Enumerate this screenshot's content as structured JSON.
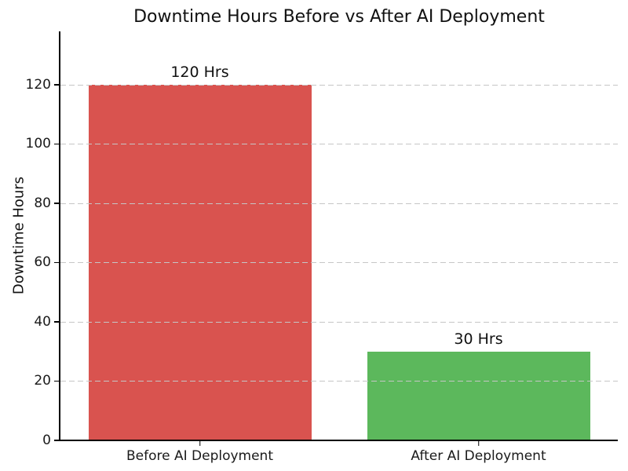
{
  "chart_data": {
    "type": "bar",
    "title": "Downtime Hours Before vs After AI Deployment",
    "xlabel": "",
    "ylabel": "Downtime Hours",
    "categories": [
      "Before AI Deployment",
      "After AI Deployment"
    ],
    "values": [
      120,
      30
    ],
    "bar_labels": [
      "120 Hrs",
      "30 Hrs"
    ],
    "bar_colors": [
      "#d9534f",
      "#5cb85c"
    ],
    "yticks": [
      0,
      20,
      40,
      60,
      80,
      100,
      120
    ],
    "ylim": [
      0,
      138
    ],
    "bar_width_fraction": 0.8,
    "grid": "horizontal dashed gridlines at each y tick, drawn over bars",
    "gridline_color": "#c6c6c6",
    "spines": "left and bottom only, black",
    "legend": "none",
    "background_color": "#ffffff",
    "text_color": "#1a1a1a"
  }
}
